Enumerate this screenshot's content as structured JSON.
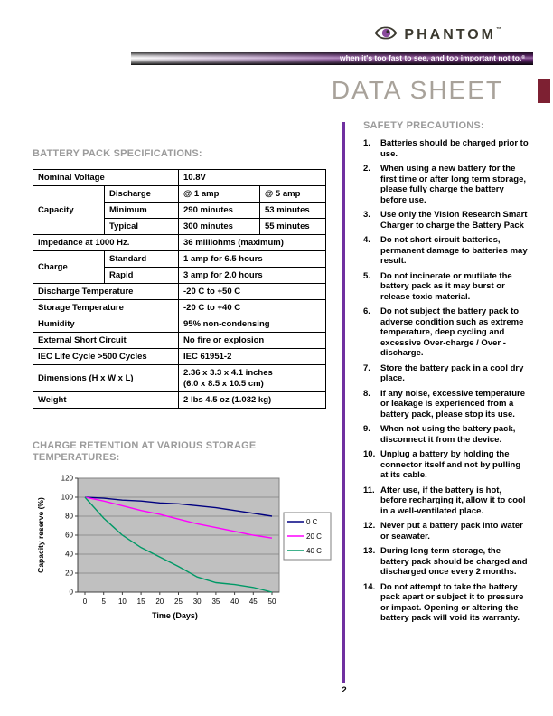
{
  "header": {
    "brand": "PHANTOM",
    "trademark": "™",
    "tagline": "when it's too fast to see, and too important not to.",
    "reg": "®",
    "page_title": "DATA SHEET"
  },
  "specs": {
    "heading": "BATTERY PACK SPECIFICATIONS:",
    "rows": [
      [
        {
          "t": "Nominal Voltage",
          "cs": 2,
          "label": true
        },
        {
          "t": "10.8V",
          "cs": 2
        }
      ],
      [
        {
          "t": "Capacity",
          "rs": 3,
          "label": true
        },
        {
          "t": "Discharge",
          "label": true
        },
        {
          "t": "@ 1 amp"
        },
        {
          "t": "@ 5 amp"
        }
      ],
      [
        {
          "t": "Minimum",
          "label": true
        },
        {
          "t": "290 minutes"
        },
        {
          "t": "53 minutes"
        }
      ],
      [
        {
          "t": "Typical",
          "label": true
        },
        {
          "t": "300 minutes"
        },
        {
          "t": "55 minutes"
        }
      ],
      [
        {
          "t": "Impedance at 1000 Hz.",
          "cs": 2,
          "label": true
        },
        {
          "t": "36 milliohms (maximum)",
          "cs": 2
        }
      ],
      [
        {
          "t": "Charge",
          "rs": 2,
          "label": true
        },
        {
          "t": "Standard",
          "label": true
        },
        {
          "t": "1 amp for 6.5 hours",
          "cs": 2
        }
      ],
      [
        {
          "t": "Rapid",
          "label": true
        },
        {
          "t": "3 amp for 2.0 hours",
          "cs": 2
        }
      ],
      [
        {
          "t": "Discharge Temperature",
          "cs": 2,
          "label": true
        },
        {
          "t": "-20 C to +50 C",
          "cs": 2
        }
      ],
      [
        {
          "t": "Storage Temperature",
          "cs": 2,
          "label": true
        },
        {
          "t": "-20 C to +40 C",
          "cs": 2
        }
      ],
      [
        {
          "t": "Humidity",
          "cs": 2,
          "label": true
        },
        {
          "t": "95% non-condensing",
          "cs": 2
        }
      ],
      [
        {
          "t": "External Short Circuit",
          "cs": 2,
          "label": true
        },
        {
          "t": "No fire or explosion",
          "cs": 2
        }
      ],
      [
        {
          "t": "IEC Life Cycle >500 Cycles",
          "cs": 2,
          "label": true
        },
        {
          "t": "IEC 61951-2",
          "cs": 2
        }
      ],
      [
        {
          "t": "Dimensions (H x W x L)",
          "cs": 2,
          "label": true
        },
        {
          "t": "2.36 x 3.3 x 4.1 inches\n(6.0 x 8.5 x 10.5 cm)",
          "cs": 2
        }
      ],
      [
        {
          "t": "Weight",
          "cs": 2,
          "label": true
        },
        {
          "t": "2 lbs 4.5 oz (1.032 kg)",
          "cs": 2
        }
      ]
    ]
  },
  "chart_section": {
    "heading": "CHARGE RETENTION AT VARIOUS STORAGE TEMPERATURES:"
  },
  "chart_data": {
    "type": "line",
    "title": "",
    "xlabel": "Time (Days)",
    "ylabel": "Capacity reserve (%)",
    "x": [
      0,
      5,
      10,
      15,
      20,
      25,
      30,
      35,
      40,
      45,
      50
    ],
    "xlim": [
      0,
      50
    ],
    "ylim": [
      0,
      120
    ],
    "ytick_step": 20,
    "grid": true,
    "legend_position": "right",
    "plot_bg": "#C0C0C0",
    "grid_color": "#808080",
    "series": [
      {
        "name": "0 C",
        "color": "#000080",
        "values": [
          100,
          99,
          97,
          96,
          94,
          93,
          91,
          89,
          86,
          83,
          80
        ]
      },
      {
        "name": "20 C",
        "color": "#FF00FF",
        "values": [
          100,
          96,
          91,
          86,
          82,
          77,
          72,
          68,
          64,
          60,
          57
        ]
      },
      {
        "name": "40 C",
        "color": "#009966",
        "values": [
          100,
          78,
          60,
          47,
          37,
          27,
          16,
          10,
          8,
          5,
          0
        ]
      }
    ]
  },
  "safety": {
    "heading": "SAFETY PRECAUTIONS:",
    "items": [
      "Batteries should be charged prior to use.",
      "When using a new battery for the first time or after long term storage, please fully charge the battery before use.",
      "Use only the Vision Research Smart Charger to charge the Battery Pack",
      "Do not short circuit batteries, permanent damage to batteries may result.",
      "Do not incinerate or mutilate the battery pack as it may burst or release toxic material.",
      "Do not subject the battery pack to adverse condition such as extreme temperature, deep cycling and excessive Over-charge / Over - discharge.",
      "Store the battery pack in a cool dry place.",
      "If any noise, excessive temperature or leakage is experienced from a battery pack, please stop its use.",
      "When not using the battery pack, disconnect it from the device.",
      "Unplug a battery by holding the connector itself and not by pulling at its cable.",
      "After use, if the battery is hot, before recharging it, allow it to cool in a well-ventilated place.",
      "Never put a battery pack into water or seawater.",
      "During long term storage, the battery pack should be charged and discharged once every 2 months.",
      "Do not attempt to take the battery pack apart or subject it to pressure or impact. Opening or altering the battery pack will void its warranty."
    ]
  },
  "footer": {
    "page_number": "2"
  },
  "colors": {
    "accent_purple": "#7030A0",
    "brand_iris_purple": "#8a4b9c",
    "maroon_accent": "#7d2032",
    "heading_gray": "#9b9b9b",
    "title_gray": "#a8a29a",
    "logo_dark": "#3b392f"
  }
}
